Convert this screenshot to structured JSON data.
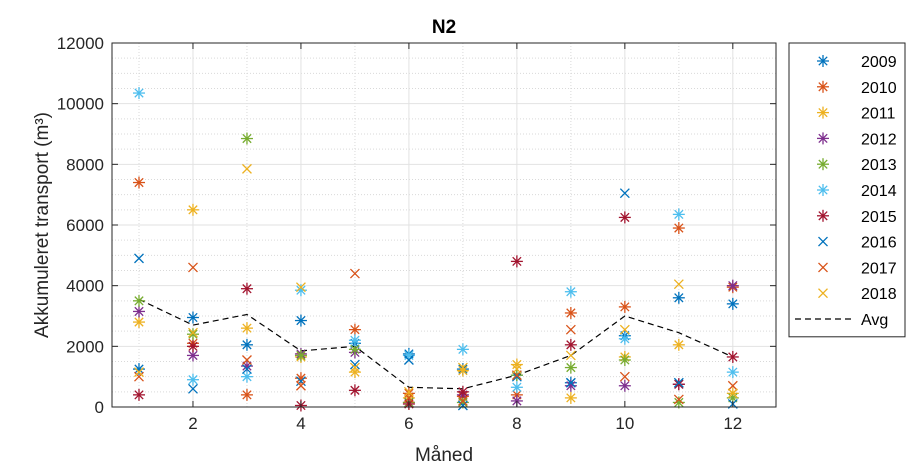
{
  "chart_data": {
    "type": "scatter",
    "title": "N2",
    "xlabel": "Måned",
    "ylabel": "Akkumuleret transport (m³)",
    "xlim": [
      0.5,
      12.8
    ],
    "ylim": [
      0,
      12000
    ],
    "xticks": [
      2,
      4,
      6,
      8,
      10,
      12
    ],
    "yticks": [
      0,
      2000,
      4000,
      6000,
      8000,
      10000,
      12000
    ],
    "grid": true,
    "minor_grid": true,
    "legend_position": "right-outside",
    "colors": {
      "2009": "#0072BD",
      "2010": "#D95319",
      "2011": "#EDB120",
      "2012": "#7E2F8E",
      "2013": "#77AC30",
      "2014": "#4DBEEE",
      "2015": "#A2142F",
      "2016": "#0072BD",
      "2017": "#D95319",
      "2018": "#EDB120",
      "Avg": "#000000"
    },
    "x": [
      1,
      2,
      3,
      4,
      5,
      6,
      7,
      8,
      9,
      10,
      11,
      12
    ],
    "series": [
      {
        "name": "2009",
        "marker": "asterisk",
        "values": [
          1250,
          2950,
          2050,
          2850,
          2100,
          1750,
          1250,
          1050,
          800,
          2350,
          3600,
          3400
        ]
      },
      {
        "name": "2010",
        "marker": "asterisk",
        "values": [
          7400,
          2100,
          400,
          950,
          2550,
          450,
          350,
          400,
          3100,
          3300,
          5900,
          3950
        ]
      },
      {
        "name": "2011",
        "marker": "asterisk",
        "values": [
          2800,
          6500,
          2600,
          1650,
          1150,
          300,
          1200,
          1400,
          300,
          1650,
          2050,
          450
        ]
      },
      {
        "name": "2012",
        "marker": "asterisk",
        "values": [
          3150,
          1700,
          1350,
          1750,
          1800,
          150,
          400,
          200,
          700,
          700,
          750,
          4000
        ]
      },
      {
        "name": "2013",
        "marker": "asterisk",
        "values": [
          3500,
          2400,
          8850,
          1700,
          1900,
          150,
          150,
          1050,
          1300,
          1550,
          150,
          300
        ]
      },
      {
        "name": "2014",
        "marker": "asterisk",
        "values": [
          10350,
          900,
          1000,
          3850,
          2200,
          1700,
          1900,
          650,
          3800,
          2250,
          6350,
          1150
        ]
      },
      {
        "name": "2015",
        "marker": "asterisk",
        "values": [
          400,
          2000,
          3900,
          50,
          550,
          100,
          500,
          4800,
          2050,
          6250,
          750,
          1650
        ]
      },
      {
        "name": "2016",
        "marker": "cross",
        "values": [
          4900,
          600,
          1250,
          850,
          1400,
          1550,
          50,
          1000,
          800,
          7050,
          800,
          100
        ]
      },
      {
        "name": "2017",
        "marker": "cross",
        "values": [
          1000,
          4600,
          1550,
          700,
          4400,
          300,
          200,
          1050,
          2550,
          1000,
          250,
          700
        ]
      },
      {
        "name": "2018",
        "marker": "cross",
        "values": [
          1150,
          2450,
          7850,
          3950,
          1300,
          500,
          1300,
          1250,
          1700,
          2550,
          4050,
          450
        ]
      },
      {
        "name": "Avg",
        "marker": "dashed-line",
        "values": [
          3550,
          2700,
          3050,
          1850,
          2000,
          650,
          600,
          1050,
          1700,
          3000,
          2450,
          1650
        ]
      }
    ]
  }
}
